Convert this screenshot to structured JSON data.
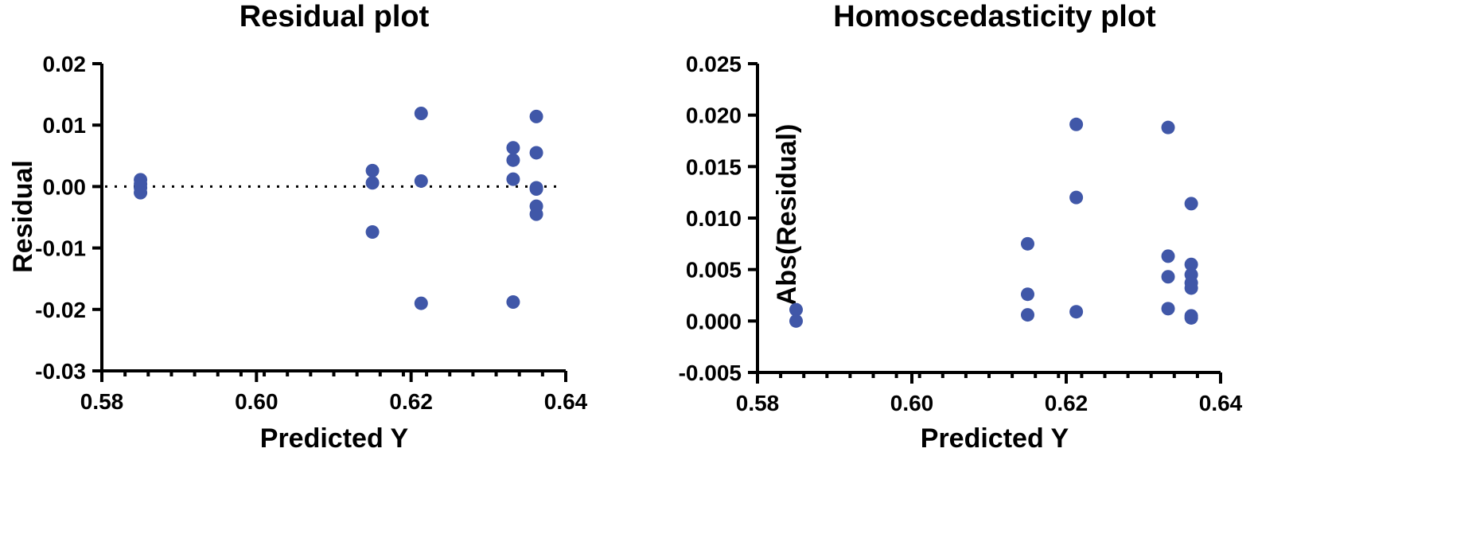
{
  "colors": {
    "marker": "#4057A8",
    "axis": "#000000"
  },
  "chart_data": [
    {
      "type": "scatter",
      "title": "Residual plot",
      "xlabel": "Predicted Y",
      "ylabel": "Residual",
      "xlim": [
        0.58,
        0.64
      ],
      "ylim": [
        -0.03,
        0.02
      ],
      "xticks": [
        0.58,
        0.6,
        0.62,
        0.64
      ],
      "xtick_labels": [
        "0.58",
        "0.60",
        "0.62",
        "0.64"
      ],
      "yticks": [
        -0.03,
        -0.02,
        -0.01,
        0.0,
        0.01,
        0.02
      ],
      "ytick_labels": [
        "-0.03",
        "-0.02",
        "-0.01",
        "0.00",
        "0.01",
        "0.02"
      ],
      "reference_line": {
        "y": 0.0,
        "style": "dotted"
      },
      "grid": false,
      "series": [
        {
          "points": [
            {
              "x": 0.585,
              "y": 0.0011
            },
            {
              "x": 0.585,
              "y": 0.0004
            },
            {
              "x": 0.585,
              "y": -0.0002
            },
            {
              "x": 0.585,
              "y": -0.001
            },
            {
              "x": 0.615,
              "y": 0.0026
            },
            {
              "x": 0.615,
              "y": 0.0006
            },
            {
              "x": 0.615,
              "y": -0.0074
            },
            {
              "x": 0.6213,
              "y": 0.0119
            },
            {
              "x": 0.6213,
              "y": 0.0009
            },
            {
              "x": 0.6213,
              "y": -0.019
            },
            {
              "x": 0.6332,
              "y": 0.0063
            },
            {
              "x": 0.6332,
              "y": 0.0043
            },
            {
              "x": 0.6332,
              "y": 0.0012
            },
            {
              "x": 0.6332,
              "y": -0.0188
            },
            {
              "x": 0.6362,
              "y": 0.0114
            },
            {
              "x": 0.6362,
              "y": 0.0055
            },
            {
              "x": 0.6362,
              "y": -0.0002
            },
            {
              "x": 0.6362,
              "y": -0.0004
            },
            {
              "x": 0.6362,
              "y": -0.0032
            },
            {
              "x": 0.6362,
              "y": -0.0045
            }
          ]
        }
      ]
    },
    {
      "type": "scatter",
      "title": "Homoscedasticity plot",
      "xlabel": "Predicted Y",
      "ylabel": "Abs(Residual)",
      "xlim": [
        0.58,
        0.64
      ],
      "ylim": [
        -0.005,
        0.025
      ],
      "xticks": [
        0.58,
        0.6,
        0.62,
        0.64
      ],
      "xtick_labels": [
        "0.58",
        "0.60",
        "0.62",
        "0.64"
      ],
      "yticks": [
        -0.005,
        0.0,
        0.005,
        0.01,
        0.015,
        0.02,
        0.025
      ],
      "ytick_labels": [
        "-0.005",
        "0.000",
        "0.005",
        "0.010",
        "0.015",
        "0.020",
        "0.025"
      ],
      "grid": false,
      "series": [
        {
          "points": [
            {
              "x": 0.585,
              "y": 0.0011
            },
            {
              "x": 0.585,
              "y": 0.0
            },
            {
              "x": 0.615,
              "y": 0.0075
            },
            {
              "x": 0.615,
              "y": 0.0026
            },
            {
              "x": 0.615,
              "y": 0.0006
            },
            {
              "x": 0.6213,
              "y": 0.0191
            },
            {
              "x": 0.6213,
              "y": 0.012
            },
            {
              "x": 0.6213,
              "y": 0.0009
            },
            {
              "x": 0.6332,
              "y": 0.0188
            },
            {
              "x": 0.6332,
              "y": 0.0063
            },
            {
              "x": 0.6332,
              "y": 0.0043
            },
            {
              "x": 0.6332,
              "y": 0.0012
            },
            {
              "x": 0.6362,
              "y": 0.0114
            },
            {
              "x": 0.6362,
              "y": 0.0055
            },
            {
              "x": 0.6362,
              "y": 0.0045
            },
            {
              "x": 0.6362,
              "y": 0.0037
            },
            {
              "x": 0.6362,
              "y": 0.0032
            },
            {
              "x": 0.6362,
              "y": 0.0005
            },
            {
              "x": 0.6362,
              "y": 0.0003
            }
          ]
        }
      ]
    }
  ]
}
